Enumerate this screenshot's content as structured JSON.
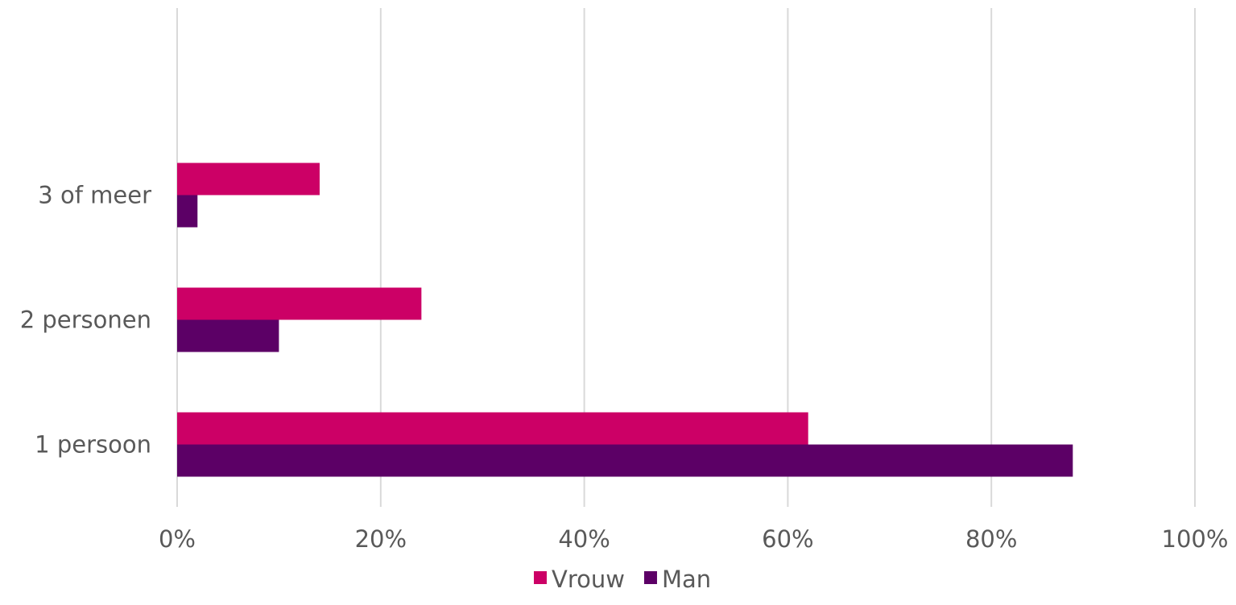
{
  "chart_data": {
    "type": "bar",
    "orientation": "horizontal",
    "categories": [
      "1 persoon",
      "2 personen",
      "3 of meer"
    ],
    "series": [
      {
        "name": "Vrouw",
        "color": "#cc0066",
        "values": [
          62,
          24,
          14
        ]
      },
      {
        "name": "Man",
        "color": "#5c0066",
        "values": [
          88,
          10,
          2
        ]
      }
    ],
    "xlim": [
      0,
      100
    ],
    "xticks": [
      0,
      20,
      40,
      60,
      80,
      100
    ],
    "xtick_labels": [
      "0%",
      "20%",
      "40%",
      "60%",
      "80%",
      "100%"
    ],
    "value_unit": "%",
    "grid": "vertical",
    "legend_position": "bottom"
  },
  "colors": {
    "grid": "#d9d9d9",
    "text": "#595959"
  }
}
